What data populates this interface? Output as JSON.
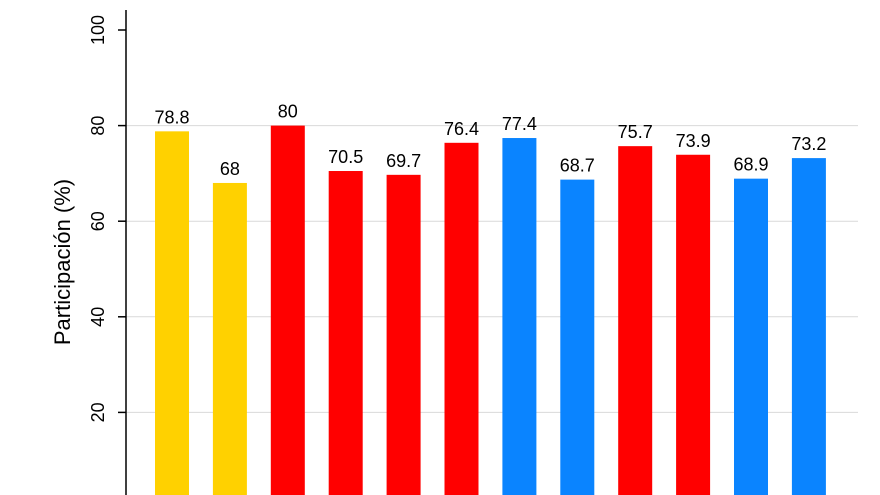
{
  "chart_data": {
    "type": "bar",
    "title": "",
    "xlabel": "",
    "ylabel": "Participación (%)",
    "ylim": [
      0,
      100
    ],
    "yticks": [
      20,
      40,
      60,
      80,
      100
    ],
    "grid": true,
    "values": [
      78.8,
      68,
      80,
      70.5,
      69.7,
      76.4,
      77.4,
      68.7,
      75.7,
      73.9,
      68.9,
      73.2
    ],
    "data_labels": [
      "78.8",
      "68",
      "80",
      "70.5",
      "69.7",
      "76.4",
      "77.4",
      "68.7",
      "75.7",
      "73.9",
      "68.9",
      "73.2"
    ],
    "bar_colors": [
      "#ffd100",
      "#ffd100",
      "#ff0000",
      "#ff0000",
      "#ff0000",
      "#ff0000",
      "#0a84ff",
      "#0a84ff",
      "#ff0000",
      "#ff0000",
      "#0a84ff",
      "#0a84ff"
    ]
  }
}
